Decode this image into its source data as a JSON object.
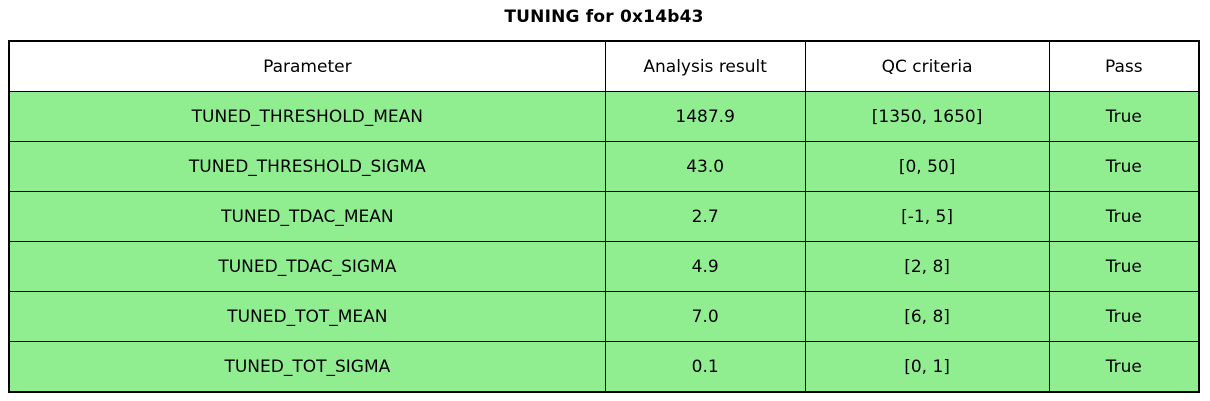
{
  "title": "TUNING for 0x14b43",
  "table": {
    "headers": [
      "Parameter",
      "Analysis result",
      "QC criteria",
      "Pass"
    ],
    "rows": [
      {
        "parameter": "TUNED_THRESHOLD_MEAN",
        "result": "1487.9",
        "criteria": "[1350, 1650]",
        "pass": "True"
      },
      {
        "parameter": "TUNED_THRESHOLD_SIGMA",
        "result": "43.0",
        "criteria": "[0, 50]",
        "pass": "True"
      },
      {
        "parameter": "TUNED_TDAC_MEAN",
        "result": "2.7",
        "criteria": "[-1, 5]",
        "pass": "True"
      },
      {
        "parameter": "TUNED_TDAC_SIGMA",
        "result": "4.9",
        "criteria": "[2, 8]",
        "pass": "True"
      },
      {
        "parameter": "TUNED_TOT_MEAN",
        "result": "7.0",
        "criteria": "[6, 8]",
        "pass": "True"
      },
      {
        "parameter": "TUNED_TOT_SIGMA",
        "result": "0.1",
        "criteria": "[0, 1]",
        "pass": "True"
      }
    ],
    "colors": {
      "pass_row": "#90EE90",
      "header_bg": "#ffffff",
      "border": "#000000"
    }
  }
}
